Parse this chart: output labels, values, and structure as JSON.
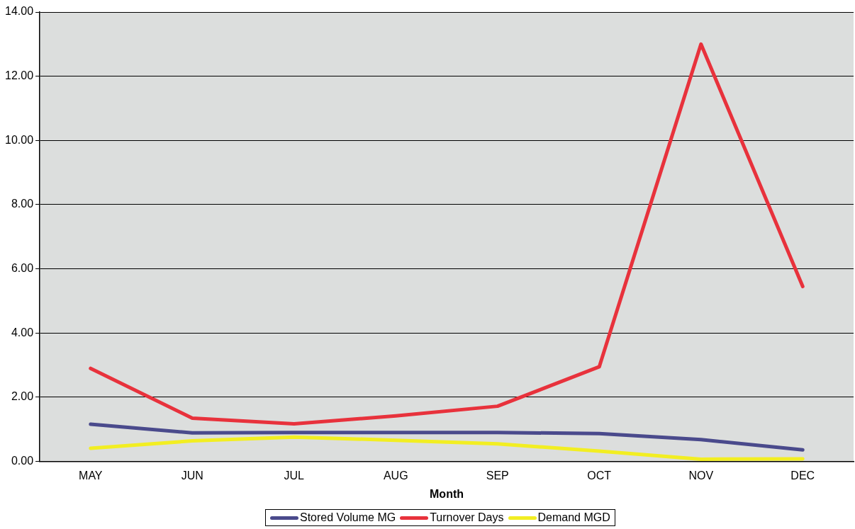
{
  "chart_data": {
    "type": "line",
    "xlabel": "Month",
    "categories": [
      "MAY",
      "JUN",
      "JUL",
      "AUG",
      "SEP",
      "OCT",
      "NOV",
      "DEC"
    ],
    "series": [
      {
        "name": "Stored Volume MG",
        "color": "#4a4a8c",
        "values": [
          1.16,
          0.89,
          0.9,
          0.9,
          0.9,
          0.87,
          0.68,
          0.36
        ]
      },
      {
        "name": "Turnover Days",
        "color": "#e8323c",
        "values": [
          2.9,
          1.35,
          1.17,
          1.42,
          1.72,
          2.95,
          13.0,
          5.45
        ]
      },
      {
        "name": "Demand MGD",
        "color": "#f2ee22",
        "values": [
          0.41,
          0.64,
          0.76,
          0.66,
          0.55,
          0.32,
          0.07,
          0.08
        ]
      }
    ],
    "ylim": [
      0,
      14
    ],
    "yticks": [
      {
        "value": 0,
        "label": "0.00"
      },
      {
        "value": 2,
        "label": "2.00"
      },
      {
        "value": 4,
        "label": "4.00"
      },
      {
        "value": 6,
        "label": "6.00"
      },
      {
        "value": 8,
        "label": "8.00"
      },
      {
        "value": 10,
        "label": "10.00"
      },
      {
        "value": 12,
        "label": "12.00"
      },
      {
        "value": 14,
        "label": "14.00"
      }
    ],
    "grid": "y",
    "legend": "bottom",
    "marker": "none",
    "line_style": "solid"
  }
}
